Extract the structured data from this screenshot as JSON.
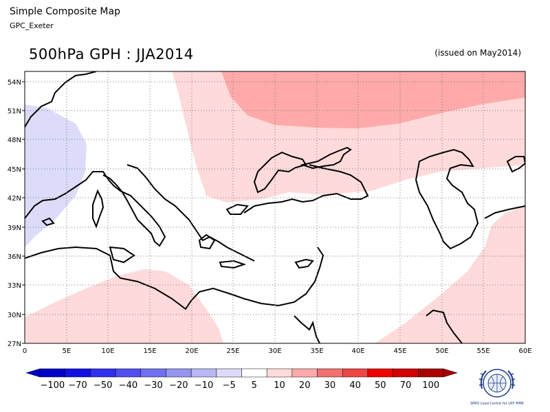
{
  "header": {
    "title": "Simple Composite Map",
    "source": "GPC_Exeter",
    "map_title": "500hPa GPH : JJA2014",
    "issued": "(issued on May2014)"
  },
  "map": {
    "lat_labels": [
      "54N",
      "51N",
      "48N",
      "45N",
      "42N",
      "39N",
      "36N",
      "33N",
      "30N",
      "27N"
    ],
    "lon_labels": [
      "0",
      "5E",
      "10E",
      "15E",
      "20E",
      "25E",
      "30E",
      "35E",
      "40E",
      "45E",
      "50E",
      "55E",
      "60E"
    ]
  },
  "colorbar": {
    "labels": [
      "−100",
      "−70",
      "−50",
      "−40",
      "−30",
      "−20",
      "−10",
      "−5",
      "5",
      "10",
      "20",
      "30",
      "40",
      "50",
      "70",
      "100"
    ],
    "colors": [
      "#0000c8",
      "#1010e6",
      "#3030f0",
      "#5050f0",
      "#7070f0",
      "#9595f0",
      "#b8b8f5",
      "#dcdcfa",
      "#ffffff",
      "#ffdada",
      "#ffaaaa",
      "#f27070",
      "#f04545",
      "#f00000",
      "#d40000",
      "#aa0000"
    ]
  },
  "logo": {
    "text": "WMO Lead Centre for LRF MME",
    "icon": "wmo-emblem-icon"
  }
}
